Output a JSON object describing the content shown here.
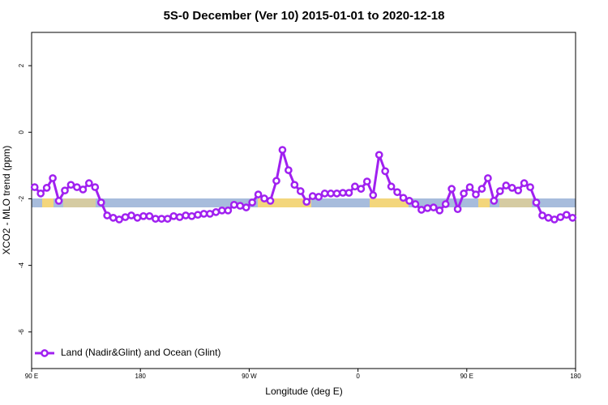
{
  "chart_data": {
    "type": "line",
    "title": "5S-0 December (Ver 10)   2015-01-01 to 2020-12-18",
    "x_label": "Longitude (deg E)",
    "y_label": "XCO2 - MLO trend (ppm)",
    "xlim": [
      90,
      540
    ],
    "xticks": [
      {
        "value": 90,
        "label": "90 E"
      },
      {
        "value": 180,
        "label": "180"
      },
      {
        "value": 270,
        "label": "90 W"
      },
      {
        "value": 360,
        "label": "0"
      },
      {
        "value": 450,
        "label": "90 E"
      },
      {
        "value": 540,
        "label": "180"
      }
    ],
    "ylim": [
      -7.1,
      3
    ],
    "yticks": [
      2,
      0,
      -2,
      -4,
      -6
    ],
    "legend": "bottomleft",
    "x": [
      92.5,
      97.5,
      102.5,
      107.5,
      112.5,
      117.5,
      122.5,
      127.5,
      132.5,
      137.5,
      142.5,
      147.5,
      152.5,
      157.5,
      162.5,
      167.5,
      172.5,
      177.5,
      182.5,
      187.5,
      192.5,
      197.5,
      202.5,
      207.5,
      212.5,
      217.5,
      222.5,
      227.5,
      232.5,
      237.5,
      242.5,
      247.5,
      252.5,
      257.5,
      262.5,
      267.5,
      272.5,
      277.5,
      282.5,
      287.5,
      292.5,
      297.5,
      302.5,
      307.5,
      312.5,
      317.5,
      322.5,
      327.5,
      332.5,
      337.5,
      342.5,
      347.5,
      352.5,
      357.5,
      362.5,
      367.5,
      372.5,
      377.5,
      382.5,
      387.5,
      392.5,
      397.5,
      402.5,
      407.5,
      412.5,
      417.5,
      422.5,
      427.5,
      432.5,
      437.5,
      442.5,
      447.5,
      452.5,
      457.5,
      462.5,
      467.5,
      472.5,
      477.5,
      482.5,
      487.5,
      492.5,
      497.5,
      502.5,
      507.5,
      512.5,
      517.5,
      522.5,
      527.5,
      532.5,
      537.5
    ],
    "series": [
      {
        "name": "Land (Nadir&Glint) and Ocean (Glint)",
        "color": "#a020f0",
        "values": [
          -1.65,
          -1.84,
          -1.67,
          -1.38,
          -2.06,
          -1.75,
          -1.58,
          -1.65,
          -1.72,
          -1.53,
          -1.65,
          -2.11,
          -2.5,
          -2.57,
          -2.62,
          -2.55,
          -2.5,
          -2.57,
          -2.52,
          -2.52,
          -2.6,
          -2.6,
          -2.6,
          -2.52,
          -2.55,
          -2.5,
          -2.52,
          -2.48,
          -2.45,
          -2.45,
          -2.4,
          -2.35,
          -2.35,
          -2.18,
          -2.21,
          -2.26,
          -2.11,
          -1.87,
          -1.99,
          -2.06,
          -1.46,
          -0.53,
          -1.14,
          -1.58,
          -1.77,
          -2.09,
          -1.92,
          -1.94,
          -1.84,
          -1.84,
          -1.84,
          -1.82,
          -1.82,
          -1.63,
          -1.7,
          -1.48,
          -1.89,
          -0.68,
          -1.17,
          -1.63,
          -1.8,
          -1.97,
          -2.06,
          -2.16,
          -2.33,
          -2.28,
          -2.26,
          -2.35,
          -2.16,
          -1.7,
          -2.31,
          -1.84,
          -1.65,
          -1.87,
          -1.7,
          -1.38,
          -2.06,
          -1.77,
          -1.6,
          -1.67,
          -1.75,
          -1.53,
          -1.65,
          -2.11,
          -2.5,
          -2.57,
          -2.62,
          -2.55,
          -2.48,
          -2.57
        ]
      }
    ]
  }
}
